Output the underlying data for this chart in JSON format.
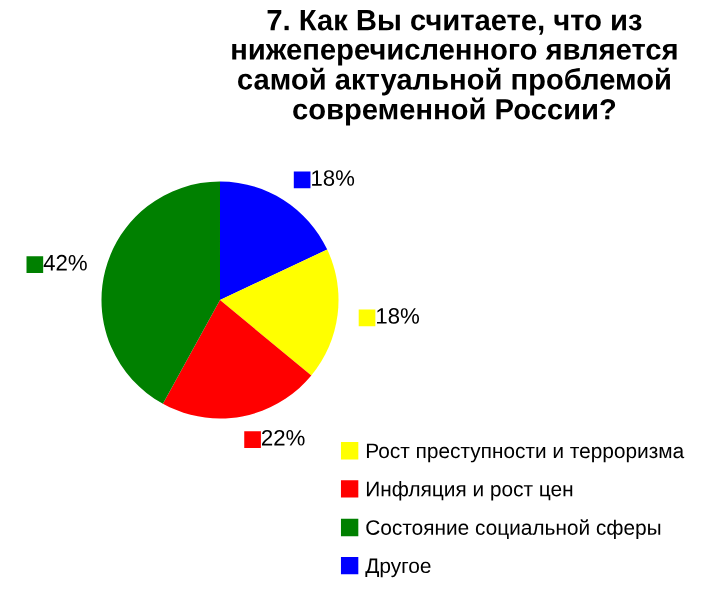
{
  "chart_data": {
    "type": "pie",
    "title": "7. Как Вы считаете, что из нижеперечисленного является самой актуальной проблемой современной России?",
    "categories": [
      "Рост преступности и терроризма",
      "Инфляция и рост цен",
      "Состояние социальной сферы",
      "Другое"
    ],
    "values": [
      18,
      22,
      42,
      18
    ],
    "value_labels": [
      "18%",
      "22%",
      "42%",
      "18%"
    ],
    "colors": [
      "#ffff00",
      "#ff0000",
      "#008000",
      "#0000ff"
    ],
    "legend": "bottom right"
  }
}
